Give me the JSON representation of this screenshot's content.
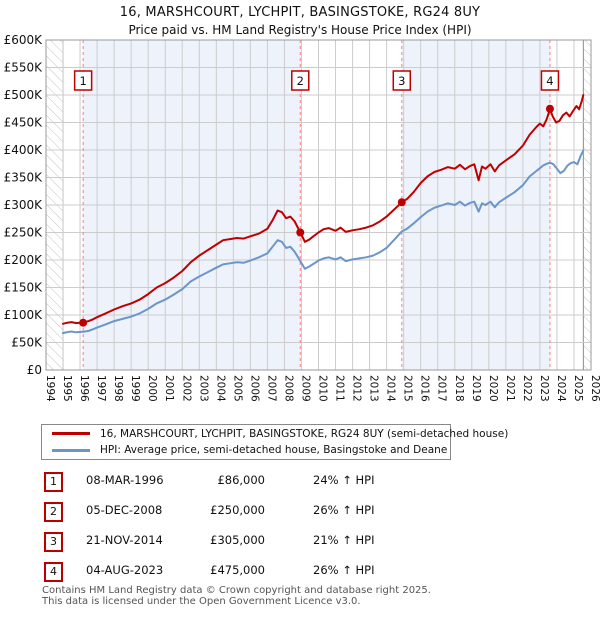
{
  "header": {
    "title": "16, MARSHCOURT, LYCHPIT, BASINGSTOKE, RG24 8UY",
    "subtitle": "Price paid vs. HM Land Registry's House Price Index (HPI)"
  },
  "legend": {
    "items": [
      {
        "label": "16, MARSHCOURT, LYCHPIT, BASINGSTOKE, RG24 8UY (semi-detached house)",
        "color": "#c00000"
      },
      {
        "label": "HPI: Average price, semi-detached house, Basingstoke and Deane",
        "color": "#6c95c8"
      }
    ]
  },
  "table": {
    "rows": [
      {
        "num": "1",
        "date": "08-MAR-1996",
        "price_label": "£86,000",
        "hpi_label": "24% ↑ HPI"
      },
      {
        "num": "2",
        "date": "05-DEC-2008",
        "price_label": "£250,000",
        "hpi_label": "26% ↑ HPI"
      },
      {
        "num": "3",
        "date": "21-NOV-2014",
        "price_label": "£305,000",
        "hpi_label": "21% ↑ HPI"
      },
      {
        "num": "4",
        "date": "04-AUG-2023",
        "price_label": "£475,000",
        "hpi_label": "26% ↑ HPI"
      }
    ]
  },
  "footer": {
    "line1": "Contains HM Land Registry data © Crown copyright and database right 2025.",
    "line2": "This data is licensed under the Open Government Licence v3.0."
  },
  "chart_data": {
    "type": "line",
    "title": "16, MARSHCOURT, LYCHPIT, BASINGSTOKE, RG24 8UY",
    "subtitle": "Price paid vs. HM Land Registry's House Price Index (HPI)",
    "xlabel": "",
    "ylabel": "",
    "x_range": [
      1994,
      2026
    ],
    "ylim": [
      0,
      600000
    ],
    "y_tick_step": 50000,
    "x_ticks": [
      1994,
      1995,
      1996,
      1997,
      1998,
      1999,
      2000,
      2001,
      2002,
      2003,
      2004,
      2005,
      2006,
      2007,
      2008,
      2009,
      2010,
      2011,
      2012,
      2013,
      2014,
      2015,
      2016,
      2017,
      2018,
      2019,
      2020,
      2021,
      2022,
      2023,
      2024,
      2025,
      2026
    ],
    "grid": true,
    "legend_position": "bottom",
    "colors": {
      "property": "#c00000",
      "hpi": "#6c95c8",
      "band": "#edf2fb",
      "grid": "#cccccc",
      "border": "#999999",
      "dashed": "#f28080",
      "hatch": "#c4c4c4",
      "badge_border": "#bb0000"
    },
    "shaded_bands": [
      [
        1996.18,
        2008.93
      ],
      [
        2014.89,
        2023.59
      ]
    ],
    "hatched_bands": [
      [
        1994.0,
        1995.0
      ],
      [
        2025.55,
        2026.0
      ]
    ],
    "sales": [
      {
        "n": 1,
        "x": 1996.18,
        "date": "08-MAR-1996",
        "price": 86000,
        "pct_vs_hpi": "24% ↑"
      },
      {
        "n": 2,
        "x": 2008.93,
        "date": "05-DEC-2008",
        "price": 250000,
        "pct_vs_hpi": "26% ↑"
      },
      {
        "n": 3,
        "x": 2014.89,
        "date": "21-NOV-2014",
        "price": 305000,
        "pct_vs_hpi": "21% ↑"
      },
      {
        "n": 4,
        "x": 2023.59,
        "date": "04-AUG-2023",
        "price": 475000,
        "pct_vs_hpi": "26% ↑"
      }
    ],
    "series": [
      {
        "name": "16, MARSHCOURT, LYCHPIT, BASINGSTOKE, RG24 8UY (semi-detached house)",
        "color": "#c00000",
        "points": [
          [
            1995.0,
            84000
          ],
          [
            1995.25,
            86000
          ],
          [
            1995.5,
            87000
          ],
          [
            1995.75,
            85500
          ],
          [
            1996.18,
            86000
          ],
          [
            1996.5,
            89000
          ],
          [
            1996.75,
            92000
          ],
          [
            1997.0,
            96000
          ],
          [
            1997.5,
            103000
          ],
          [
            1998.0,
            110000
          ],
          [
            1998.5,
            116000
          ],
          [
            1999.0,
            121000
          ],
          [
            1999.5,
            128000
          ],
          [
            2000.0,
            138000
          ],
          [
            2000.5,
            150000
          ],
          [
            2001.0,
            158000
          ],
          [
            2001.5,
            168000
          ],
          [
            2002.0,
            180000
          ],
          [
            2002.5,
            196000
          ],
          [
            2003.0,
            208000
          ],
          [
            2003.5,
            218000
          ],
          [
            2004.0,
            228000
          ],
          [
            2004.4,
            236000
          ],
          [
            2004.8,
            238000
          ],
          [
            2005.2,
            240000
          ],
          [
            2005.6,
            239000
          ],
          [
            2006.0,
            243000
          ],
          [
            2006.5,
            248000
          ],
          [
            2007.0,
            257000
          ],
          [
            2007.3,
            272000
          ],
          [
            2007.6,
            290000
          ],
          [
            2007.85,
            287000
          ],
          [
            2008.1,
            276000
          ],
          [
            2008.35,
            279000
          ],
          [
            2008.6,
            270000
          ],
          [
            2008.93,
            250000
          ],
          [
            2009.2,
            233000
          ],
          [
            2009.45,
            237000
          ],
          [
            2009.7,
            243000
          ],
          [
            2010.0,
            250000
          ],
          [
            2010.3,
            256000
          ],
          [
            2010.6,
            258000
          ],
          [
            2011.0,
            253000
          ],
          [
            2011.3,
            259000
          ],
          [
            2011.6,
            251000
          ],
          [
            2012.0,
            254000
          ],
          [
            2012.4,
            256000
          ],
          [
            2012.8,
            259000
          ],
          [
            2013.2,
            263000
          ],
          [
            2013.6,
            270000
          ],
          [
            2014.0,
            279000
          ],
          [
            2014.45,
            292000
          ],
          [
            2014.89,
            305000
          ],
          [
            2015.2,
            311000
          ],
          [
            2015.6,
            324000
          ],
          [
            2016.0,
            340000
          ],
          [
            2016.4,
            352000
          ],
          [
            2016.8,
            360000
          ],
          [
            2017.2,
            364000
          ],
          [
            2017.6,
            369000
          ],
          [
            2018.0,
            366000
          ],
          [
            2018.3,
            373000
          ],
          [
            2018.6,
            365000
          ],
          [
            2018.9,
            371000
          ],
          [
            2019.15,
            374000
          ],
          [
            2019.4,
            345000
          ],
          [
            2019.6,
            370000
          ],
          [
            2019.8,
            366000
          ],
          [
            2020.1,
            374000
          ],
          [
            2020.35,
            361000
          ],
          [
            2020.6,
            372000
          ],
          [
            2021.0,
            381000
          ],
          [
            2021.5,
            392000
          ],
          [
            2022.0,
            408000
          ],
          [
            2022.4,
            428000
          ],
          [
            2022.8,
            442000
          ],
          [
            2023.0,
            448000
          ],
          [
            2023.2,
            443000
          ],
          [
            2023.4,
            456000
          ],
          [
            2023.59,
            475000
          ],
          [
            2023.75,
            461000
          ],
          [
            2023.95,
            450000
          ],
          [
            2024.15,
            453000
          ],
          [
            2024.35,
            463000
          ],
          [
            2024.55,
            468000
          ],
          [
            2024.75,
            461000
          ],
          [
            2024.95,
            471000
          ],
          [
            2025.15,
            480000
          ],
          [
            2025.3,
            474000
          ],
          [
            2025.45,
            488000
          ],
          [
            2025.55,
            500000
          ]
        ]
      },
      {
        "name": "HPI: Average price, semi-detached house, Basingstoke and Deane",
        "color": "#6c95c8",
        "points": [
          [
            1995.0,
            67000
          ],
          [
            1995.25,
            69000
          ],
          [
            1995.5,
            70000
          ],
          [
            1995.75,
            68500
          ],
          [
            1996.18,
            69500
          ],
          [
            1996.5,
            71000
          ],
          [
            1996.75,
            74000
          ],
          [
            1997.0,
            77000
          ],
          [
            1997.5,
            83000
          ],
          [
            1998.0,
            89000
          ],
          [
            1998.5,
            93000
          ],
          [
            1999.0,
            97000
          ],
          [
            1999.5,
            103000
          ],
          [
            2000.0,
            111000
          ],
          [
            2000.5,
            121000
          ],
          [
            2001.0,
            128000
          ],
          [
            2001.5,
            137000
          ],
          [
            2002.0,
            147000
          ],
          [
            2002.5,
            161000
          ],
          [
            2003.0,
            170000
          ],
          [
            2003.5,
            178000
          ],
          [
            2004.0,
            186000
          ],
          [
            2004.4,
            192000
          ],
          [
            2004.8,
            194000
          ],
          [
            2005.2,
            196000
          ],
          [
            2005.6,
            195000
          ],
          [
            2006.0,
            199000
          ],
          [
            2006.5,
            205000
          ],
          [
            2007.0,
            212000
          ],
          [
            2007.3,
            224000
          ],
          [
            2007.6,
            236000
          ],
          [
            2007.85,
            233000
          ],
          [
            2008.1,
            222000
          ],
          [
            2008.35,
            224000
          ],
          [
            2008.6,
            215000
          ],
          [
            2008.93,
            198000
          ],
          [
            2009.2,
            184000
          ],
          [
            2009.45,
            188000
          ],
          [
            2009.7,
            193000
          ],
          [
            2010.0,
            199000
          ],
          [
            2010.3,
            203000
          ],
          [
            2010.6,
            205000
          ],
          [
            2011.0,
            201000
          ],
          [
            2011.3,
            205000
          ],
          [
            2011.6,
            198000
          ],
          [
            2012.0,
            201000
          ],
          [
            2012.4,
            203000
          ],
          [
            2012.8,
            205000
          ],
          [
            2013.2,
            208000
          ],
          [
            2013.6,
            214000
          ],
          [
            2014.0,
            222000
          ],
          [
            2014.45,
            237000
          ],
          [
            2014.89,
            252000
          ],
          [
            2015.2,
            257000
          ],
          [
            2015.6,
            267000
          ],
          [
            2016.0,
            278000
          ],
          [
            2016.4,
            288000
          ],
          [
            2016.8,
            295000
          ],
          [
            2017.2,
            299000
          ],
          [
            2017.6,
            303000
          ],
          [
            2018.0,
            300000
          ],
          [
            2018.3,
            306000
          ],
          [
            2018.6,
            299000
          ],
          [
            2018.9,
            304000
          ],
          [
            2019.15,
            306000
          ],
          [
            2019.4,
            288000
          ],
          [
            2019.6,
            303000
          ],
          [
            2019.8,
            300000
          ],
          [
            2020.1,
            306000
          ],
          [
            2020.35,
            296000
          ],
          [
            2020.6,
            305000
          ],
          [
            2021.0,
            313000
          ],
          [
            2021.5,
            323000
          ],
          [
            2022.0,
            336000
          ],
          [
            2022.4,
            352000
          ],
          [
            2022.8,
            362000
          ],
          [
            2023.0,
            367000
          ],
          [
            2023.2,
            372000
          ],
          [
            2023.4,
            375000
          ],
          [
            2023.59,
            377000
          ],
          [
            2023.8,
            374000
          ],
          [
            2024.0,
            366000
          ],
          [
            2024.2,
            358000
          ],
          [
            2024.4,
            362000
          ],
          [
            2024.6,
            371000
          ],
          [
            2024.8,
            376000
          ],
          [
            2025.0,
            378000
          ],
          [
            2025.2,
            374000
          ],
          [
            2025.4,
            390000
          ],
          [
            2025.55,
            399000
          ]
        ]
      }
    ]
  }
}
